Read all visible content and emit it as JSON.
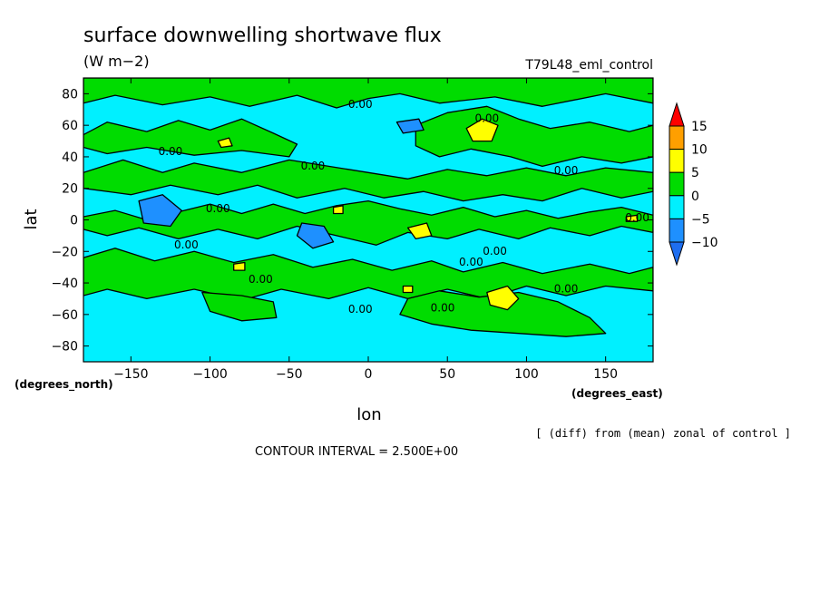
{
  "chart_data": {
    "type": "heatmap",
    "title": "surface downwelling shortwave flux",
    "units": "(W m−2)",
    "run_name": "T79L48_eml_control",
    "xlabel": "lon",
    "ylabel": "lat",
    "x_unit_label": "(degrees_east)",
    "y_unit_label": "(degrees_north)",
    "xlim": [
      -180,
      180
    ],
    "ylim": [
      -90,
      90
    ],
    "x_ticks": [
      {
        "value": -150,
        "label": "−150"
      },
      {
        "value": -100,
        "label": "−100"
      },
      {
        "value": -50,
        "label": "−50"
      },
      {
        "value": 0,
        "label": "0"
      },
      {
        "value": 50,
        "label": "50"
      },
      {
        "value": 100,
        "label": "100"
      },
      {
        "value": 150,
        "label": "150"
      }
    ],
    "y_ticks": [
      {
        "value": 80,
        "label": "80"
      },
      {
        "value": 60,
        "label": "60"
      },
      {
        "value": 40,
        "label": "40"
      },
      {
        "value": 20,
        "label": "20"
      },
      {
        "value": 0,
        "label": "0"
      },
      {
        "value": -20,
        "label": "−20"
      },
      {
        "value": -40,
        "label": "−40"
      },
      {
        "value": -60,
        "label": "−60"
      },
      {
        "value": -80,
        "label": "−80"
      }
    ],
    "colorbar": {
      "levels": [
        15,
        10,
        5,
        0,
        -5,
        -10
      ],
      "labels": [
        "15",
        "10",
        "5",
        "0",
        "−5",
        "−10"
      ],
      "colors": [
        "#ff0000",
        "#ff9f00",
        "#ffff00",
        "#00dc00",
        "#00f0ff",
        "#1e90ff",
        "#1e6ef0"
      ]
    },
    "contour_labels": [
      {
        "x": -5,
        "y": 71,
        "text": "0.00"
      },
      {
        "x": 75,
        "y": 62,
        "text": "0.00"
      },
      {
        "x": -125,
        "y": 41,
        "text": "0.00"
      },
      {
        "x": -35,
        "y": 32,
        "text": "0.00"
      },
      {
        "x": 125,
        "y": 29,
        "text": "0.00"
      },
      {
        "x": -95,
        "y": 5,
        "text": "0.00"
      },
      {
        "x": 170,
        "y": -1,
        "text": "0.00"
      },
      {
        "x": -115,
        "y": -18,
        "text": "0.00"
      },
      {
        "x": 80,
        "y": -22,
        "text": "0.00"
      },
      {
        "x": 65,
        "y": -29,
        "text": "0.00"
      },
      {
        "x": -68,
        "y": -40,
        "text": "0.00"
      },
      {
        "x": 125,
        "y": -46,
        "text": "0.00"
      },
      {
        "x": -5,
        "y": -59,
        "text": "0.00"
      },
      {
        "x": 47,
        "y": -58,
        "text": "0.00"
      }
    ],
    "field_background": "#00f0ff",
    "regions": [
      {
        "color": "#00dc00",
        "points": [
          [
            -180,
            90
          ],
          [
            180,
            90
          ],
          [
            180,
            74
          ],
          [
            150,
            80
          ],
          [
            110,
            72
          ],
          [
            80,
            78
          ],
          [
            45,
            74
          ],
          [
            20,
            80
          ],
          [
            0,
            77
          ],
          [
            -20,
            71
          ],
          [
            -45,
            79
          ],
          [
            -75,
            72
          ],
          [
            -100,
            78
          ],
          [
            -130,
            73
          ],
          [
            -160,
            79
          ],
          [
            -180,
            74
          ]
        ]
      },
      {
        "color": "#00dc00",
        "points": [
          [
            -180,
            54
          ],
          [
            -165,
            62
          ],
          [
            -140,
            56
          ],
          [
            -120,
            63
          ],
          [
            -100,
            57
          ],
          [
            -80,
            64
          ],
          [
            -60,
            55
          ],
          [
            -45,
            48
          ],
          [
            -50,
            40
          ],
          [
            -80,
            44
          ],
          [
            -110,
            41
          ],
          [
            -140,
            46
          ],
          [
            -165,
            42
          ],
          [
            -180,
            46
          ]
        ]
      },
      {
        "color": "#00dc00",
        "points": [
          [
            30,
            60
          ],
          [
            50,
            68
          ],
          [
            75,
            72
          ],
          [
            95,
            64
          ],
          [
            115,
            58
          ],
          [
            140,
            62
          ],
          [
            165,
            56
          ],
          [
            180,
            60
          ],
          [
            180,
            40
          ],
          [
            160,
            36
          ],
          [
            135,
            40
          ],
          [
            110,
            34
          ],
          [
            90,
            40
          ],
          [
            65,
            45
          ],
          [
            45,
            40
          ],
          [
            30,
            47
          ]
        ]
      },
      {
        "color": "#00dc00",
        "points": [
          [
            -180,
            30
          ],
          [
            -155,
            38
          ],
          [
            -130,
            30
          ],
          [
            -110,
            36
          ],
          [
            -80,
            30
          ],
          [
            -50,
            38
          ],
          [
            -25,
            34
          ],
          [
            0,
            30
          ],
          [
            25,
            26
          ],
          [
            50,
            32
          ],
          [
            75,
            28
          ],
          [
            100,
            33
          ],
          [
            125,
            28
          ],
          [
            150,
            33
          ],
          [
            180,
            30
          ],
          [
            180,
            18
          ],
          [
            160,
            14
          ],
          [
            135,
            20
          ],
          [
            110,
            12
          ],
          [
            85,
            16
          ],
          [
            60,
            12
          ],
          [
            35,
            18
          ],
          [
            10,
            14
          ],
          [
            -15,
            20
          ],
          [
            -45,
            14
          ],
          [
            -70,
            22
          ],
          [
            -95,
            16
          ],
          [
            -125,
            22
          ],
          [
            -150,
            16
          ],
          [
            -180,
            20
          ]
        ]
      },
      {
        "color": "#00dc00",
        "points": [
          [
            -180,
            2
          ],
          [
            -160,
            6
          ],
          [
            -140,
            0
          ],
          [
            -120,
            5
          ],
          [
            -100,
            10
          ],
          [
            -80,
            4
          ],
          [
            -60,
            10
          ],
          [
            -40,
            4
          ],
          [
            -20,
            9
          ],
          [
            0,
            12
          ],
          [
            20,
            7
          ],
          [
            40,
            3
          ],
          [
            60,
            8
          ],
          [
            80,
            2
          ],
          [
            100,
            6
          ],
          [
            120,
            1
          ],
          [
            140,
            5
          ],
          [
            160,
            8
          ],
          [
            180,
            3
          ],
          [
            180,
            -8
          ],
          [
            160,
            -4
          ],
          [
            140,
            -10
          ],
          [
            115,
            -5
          ],
          [
            95,
            -12
          ],
          [
            70,
            -6
          ],
          [
            50,
            -12
          ],
          [
            25,
            -8
          ],
          [
            5,
            -16
          ],
          [
            -20,
            -10
          ],
          [
            -45,
            -4
          ],
          [
            -70,
            -12
          ],
          [
            -95,
            -6
          ],
          [
            -120,
            -12
          ],
          [
            -145,
            -5
          ],
          [
            -165,
            -10
          ],
          [
            -180,
            -6
          ]
        ]
      },
      {
        "color": "#00dc00",
        "points": [
          [
            -180,
            -24
          ],
          [
            -160,
            -18
          ],
          [
            -135,
            -26
          ],
          [
            -110,
            -20
          ],
          [
            -85,
            -27
          ],
          [
            -60,
            -22
          ],
          [
            -35,
            -30
          ],
          [
            -10,
            -25
          ],
          [
            15,
            -32
          ],
          [
            40,
            -26
          ],
          [
            60,
            -33
          ],
          [
            85,
            -27
          ],
          [
            110,
            -34
          ],
          [
            140,
            -28
          ],
          [
            165,
            -34
          ],
          [
            180,
            -30
          ],
          [
            180,
            -45
          ],
          [
            150,
            -42
          ],
          [
            125,
            -48
          ],
          [
            100,
            -42
          ],
          [
            75,
            -50
          ],
          [
            50,
            -44
          ],
          [
            25,
            -50
          ],
          [
            0,
            -43
          ],
          [
            -25,
            -50
          ],
          [
            -55,
            -44
          ],
          [
            -80,
            -51
          ],
          [
            -110,
            -44
          ],
          [
            -140,
            -50
          ],
          [
            -165,
            -44
          ],
          [
            -180,
            -48
          ]
        ]
      },
      {
        "color": "#00dc00",
        "points": [
          [
            25,
            -50
          ],
          [
            45,
            -45
          ],
          [
            70,
            -49
          ],
          [
            95,
            -46
          ],
          [
            120,
            -52
          ],
          [
            140,
            -62
          ],
          [
            150,
            -72
          ],
          [
            125,
            -74
          ],
          [
            95,
            -72
          ],
          [
            65,
            -70
          ],
          [
            40,
            -66
          ],
          [
            20,
            -60
          ]
        ]
      },
      {
        "color": "#00dc00",
        "points": [
          [
            -105,
            -46
          ],
          [
            -80,
            -48
          ],
          [
            -60,
            -52
          ],
          [
            -58,
            -62
          ],
          [
            -80,
            -64
          ],
          [
            -100,
            -58
          ]
        ]
      },
      {
        "color": "#1e90ff",
        "points": [
          [
            -145,
            12
          ],
          [
            -130,
            16
          ],
          [
            -118,
            6
          ],
          [
            -125,
            -4
          ],
          [
            -142,
            -2
          ]
        ]
      },
      {
        "color": "#1e90ff",
        "points": [
          [
            -42,
            -2
          ],
          [
            -28,
            -4
          ],
          [
            -22,
            -14
          ],
          [
            -35,
            -18
          ],
          [
            -45,
            -10
          ]
        ]
      },
      {
        "color": "#1e90ff",
        "points": [
          [
            18,
            62
          ],
          [
            32,
            64
          ],
          [
            35,
            57
          ],
          [
            22,
            55
          ]
        ]
      },
      {
        "color": "#ffff00",
        "points": [
          [
            62,
            58
          ],
          [
            72,
            64
          ],
          [
            82,
            60
          ],
          [
            78,
            50
          ],
          [
            66,
            50
          ]
        ]
      },
      {
        "color": "#ffff00",
        "points": [
          [
            75,
            -46
          ],
          [
            88,
            -42
          ],
          [
            95,
            -50
          ],
          [
            88,
            -57
          ],
          [
            77,
            -54
          ]
        ]
      },
      {
        "color": "#ffff00",
        "points": [
          [
            25,
            -5
          ],
          [
            37,
            -2
          ],
          [
            40,
            -10
          ],
          [
            30,
            -12
          ]
        ]
      },
      {
        "color": "#ffff00",
        "points": [
          [
            -95,
            50
          ],
          [
            -88,
            52
          ],
          [
            -86,
            47
          ],
          [
            -93,
            46
          ]
        ]
      },
      {
        "color": "#ffff00",
        "points": [
          [
            -85,
            -28
          ],
          [
            -78,
            -27
          ],
          [
            -78,
            -32
          ],
          [
            -85,
            -32
          ]
        ]
      },
      {
        "color": "#ffff00",
        "points": [
          [
            -22,
            8
          ],
          [
            -16,
            9
          ],
          [
            -16,
            4
          ],
          [
            -22,
            4
          ]
        ]
      },
      {
        "color": "#ffff00",
        "points": [
          [
            22,
            -42
          ],
          [
            28,
            -42
          ],
          [
            28,
            -46
          ],
          [
            22,
            -46
          ]
        ]
      },
      {
        "color": "#ffff00",
        "points": [
          [
            163,
            2
          ],
          [
            170,
            3
          ],
          [
            170,
            -1
          ],
          [
            163,
            -1
          ]
        ]
      }
    ]
  }
}
